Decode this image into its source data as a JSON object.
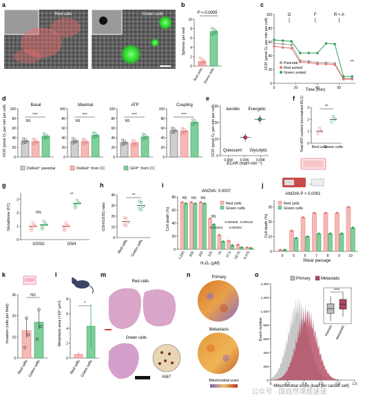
{
  "panels": {
    "a": {
      "letter": "a",
      "labels": [
        "Red cells",
        "Green cells"
      ]
    },
    "b": {
      "letter": "b",
      "p": "P = 0.0005",
      "ylabel": "Spheres per well",
      "yticks": [
        "0",
        "2",
        "4",
        "6",
        "8",
        "10"
      ],
      "cats": [
        "Red cells",
        "Green cells"
      ]
    },
    "c": {
      "letter": "c",
      "ylabel": "OCR (pmol O₂ per min per cell)",
      "xlabel": "Time (min)",
      "yticks": [
        "0",
        "20",
        "40",
        "60",
        "80",
        "100"
      ],
      "xticks": [
        "0",
        "20",
        "40",
        "60"
      ],
      "marks": [
        "O",
        "F",
        "R + A"
      ],
      "legend": [
        "Parental",
        "Red sorted",
        "Green sorted"
      ],
      "sig": "***"
    },
    "d": {
      "letter": "d",
      "ylabel": "OCR (pmol O₂ per min per cell)",
      "titles": [
        "Basal",
        "Maximal",
        "ATP",
        "Coupling"
      ],
      "yticks": [
        "0",
        "20",
        "40",
        "60",
        "80",
        "100"
      ],
      "sig": "****",
      "ns": "NS",
      "legend": [
        "DsRed⁺ parental",
        "DsRed⁺ from CC",
        "GFP⁺ from CC"
      ]
    },
    "e": {
      "letter": "e",
      "xlabel": "ECAR (mpH min⁻¹)",
      "ylabel": "OCR (pmol O₂ per min per cell)",
      "quadrants": [
        "Aerobic",
        "Energetic",
        "Quiescent",
        "Glycolytic"
      ],
      "xticks": [
        "0.004",
        "0.006",
        "0.008"
      ],
      "yticks": [
        "0",
        "10",
        "20",
        "30"
      ]
    },
    "f": {
      "letter": "f",
      "ylabel": "Total ATP content (normalized RLU)",
      "yticks": [
        "0",
        "1",
        "2",
        "3"
      ],
      "cats": [
        "Red cells",
        "Green cells"
      ],
      "sig": "**"
    },
    "g": {
      "letter": "g",
      "ylabel": "Glutathione (FC)",
      "yticks": [
        "0",
        "1",
        "2",
        "3"
      ],
      "cats": [
        "GSSG",
        "GSH"
      ],
      "ns": "NS",
      "sig": "**"
    },
    "h": {
      "letter": "h",
      "ylabel": "GSH/GSSG ratio",
      "yticks": [
        "0",
        "10",
        "20",
        "30",
        "40"
      ],
      "cats": [
        "Red cells",
        "Green cells"
      ],
      "sig": "**"
    },
    "i": {
      "letter": "i",
      "anova": "ANOVA: 0.0007",
      "legend": [
        "Red cells",
        "Green cells"
      ],
      "ylabel": "Cell death (%)",
      "xlabel": "H₂O₂ (μM)",
      "yticks": [
        "0",
        "20",
        "40",
        "60",
        "80"
      ],
      "xcats": [
        "1,000",
        "500",
        "250",
        "125",
        "75",
        "37.5",
        "18.75",
        "9.375"
      ],
      "pvals": [
        "0.000338",
        "0.000132",
        "0.041604",
        "0.000281"
      ],
      "ns": "NS"
    },
    "j": {
      "letter": "j",
      "anova": "ANOVA P < 0.0001",
      "legend": [
        "Red cells",
        "Green cells"
      ],
      "ylabel": "Cell death (%)",
      "xlabel": "Shear passage",
      "yticks": [
        "0",
        "10",
        "20",
        "30"
      ],
      "xcats": [
        "0",
        "5",
        "6",
        "7",
        "8",
        "9",
        "10"
      ]
    },
    "k": {
      "letter": "k",
      "ylabel": "Invasion (cells per field)",
      "yticks": [
        "0",
        "10",
        "20",
        "30"
      ],
      "cats": [
        "Red cells",
        "Green cells"
      ],
      "ns": "NS"
    },
    "l": {
      "letter": "l",
      "ylabel": "Metastasis area (×10⁴ μm²)",
      "yticks": [
        "0",
        "2",
        "4",
        "6",
        "8"
      ],
      "cats": [
        "Red cells",
        "Green cells"
      ],
      "sig": "*"
    },
    "m": {
      "letter": "m",
      "top": "Red cells",
      "bottom": "Green cells",
      "stain": "Ki67"
    },
    "n": {
      "letter": "n",
      "top": "Primary",
      "bottom": "Metastasis",
      "scale": "Mitochondrial score"
    },
    "o": {
      "letter": "o",
      "legend": [
        "Primary",
        "Metastatic"
      ],
      "ylabel": "Event number",
      "xlabel": "Mitochondrial score (load per cancer cell)",
      "yticks": [
        "0",
        "200",
        "400",
        "600",
        "800",
        "1,000",
        "1,200",
        "1,400"
      ],
      "xticks": [
        "0",
        "0.2",
        "0.4",
        "0.6",
        "0.8",
        "1.0"
      ],
      "sig": "****",
      "inner_cats": [
        "Primary",
        "Metastatic"
      ]
    }
  },
  "watermark": "公众号 · 国自然课题速递",
  "colors": {
    "red": "#e2736f",
    "redFill": "#f5b9b6",
    "green": "#2e9e5b",
    "greenFill": "#7fcf9a",
    "grey": "#9e9e9e",
    "greyFill": "#cfcfcf",
    "pink": "#b3475f"
  },
  "chart_data": [
    {
      "panel": "b",
      "type": "bar",
      "categories": [
        "Red cells",
        "Green cells"
      ],
      "values": [
        1.0,
        7.4
      ],
      "ylim": [
        0,
        10
      ]
    },
    {
      "panel": "c",
      "type": "line",
      "x": [
        0,
        8,
        16,
        24,
        32,
        40,
        48,
        56,
        64,
        72
      ],
      "series": [
        {
          "name": "Parental",
          "values": [
            58,
            57,
            56,
            33,
            32,
            30,
            30,
            29,
            7,
            7
          ]
        },
        {
          "name": "Red sorted",
          "values": [
            54,
            52,
            51,
            31,
            30,
            28,
            28,
            27,
            6,
            6
          ]
        },
        {
          "name": "Green sorted",
          "values": [
            63,
            62,
            61,
            44,
            44,
            44,
            58,
            57,
            10,
            10
          ]
        }
      ],
      "ylim": [
        0,
        100
      ]
    },
    {
      "panel": "d",
      "type": "bar",
      "categories": [
        "Basal",
        "Maximal",
        "ATP",
        "Coupling"
      ],
      "series": [
        {
          "name": "DsRed⁺ parental",
          "values": [
            33,
            33,
            30,
            55
          ]
        },
        {
          "name": "DsRed⁺ from CC",
          "values": [
            32,
            32,
            29,
            54
          ]
        },
        {
          "name": "GFP⁺ from CC",
          "values": [
            43,
            45,
            42,
            72
          ]
        }
      ],
      "ylim": [
        0,
        100
      ]
    },
    {
      "panel": "e",
      "type": "scatter",
      "series": [
        {
          "name": "Red cells",
          "x": [
            0.0061
          ],
          "y": [
            11
          ]
        },
        {
          "name": "Green cells",
          "x": [
            0.0079
          ],
          "y": [
            22
          ]
        }
      ],
      "xlim": [
        0.003,
        0.009
      ],
      "ylim": [
        0,
        30
      ]
    },
    {
      "panel": "f",
      "type": "bar",
      "categories": [
        "Red cells",
        "Green cells"
      ],
      "values": [
        1.0,
        2.0
      ],
      "ylim": [
        0,
        3
      ]
    },
    {
      "panel": "g",
      "type": "bar",
      "categories": [
        "GSSG",
        "GSH"
      ],
      "series": [
        {
          "name": "Red cells",
          "values": [
            1.0,
            1.0
          ]
        },
        {
          "name": "Green cells",
          "values": [
            1.1,
            2.7
          ]
        }
      ],
      "ylim": [
        0,
        3.5
      ]
    },
    {
      "panel": "h",
      "type": "bar",
      "categories": [
        "Red cells",
        "Green cells"
      ],
      "values": [
        15,
        30
      ],
      "ylim": [
        0,
        40
      ]
    },
    {
      "panel": "i",
      "type": "bar",
      "categories": [
        "1,000",
        "500",
        "250",
        "125",
        "75",
        "37.5",
        "18.75",
        "9.375"
      ],
      "series": [
        {
          "name": "Red cells",
          "values": [
            72,
            72,
            72,
            47,
            22,
            13,
            7,
            3
          ]
        },
        {
          "name": "Green cells",
          "values": [
            70,
            70,
            70,
            38,
            12,
            6,
            3,
            2
          ]
        }
      ],
      "ylim": [
        0,
        80
      ]
    },
    {
      "panel": "j",
      "type": "bar",
      "categories": [
        "0",
        "5",
        "6",
        "7",
        "8",
        "9",
        "10"
      ],
      "series": [
        {
          "name": "Red cells",
          "values": [
            1,
            14,
            23,
            26,
            26,
            26,
            30
          ]
        },
        {
          "name": "Green cells",
          "values": [
            1,
            9,
            10,
            12,
            12,
            12,
            16
          ]
        }
      ],
      "ylim": [
        0,
        35
      ]
    },
    {
      "panel": "k",
      "type": "bar",
      "categories": [
        "Red cells",
        "Green cells"
      ],
      "values": [
        13,
        17
      ],
      "ylim": [
        0,
        30
      ]
    },
    {
      "panel": "l",
      "type": "bar",
      "categories": [
        "Red cells",
        "Green cells"
      ],
      "values": [
        0.5,
        4.3
      ],
      "ylim": [
        0,
        8
      ]
    }
  ]
}
